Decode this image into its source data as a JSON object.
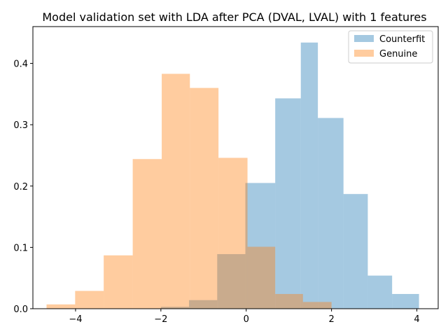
{
  "chart_data": {
    "type": "histogram",
    "title": "Model validation set with LDA after PCA (DVAL, LVAL) with 1 features",
    "xlabel": "",
    "ylabel": "",
    "xlim": [
      -5.0,
      4.5
    ],
    "ylim": [
      0.0,
      0.46
    ],
    "xticks": [
      -4,
      -2,
      0,
      2,
      4
    ],
    "yticks": [
      0.0,
      0.1,
      0.2,
      0.3,
      0.4
    ],
    "legend_position": "upper right",
    "series": [
      {
        "name": "Counterfit",
        "color": "#1f77b4",
        "alpha": 0.4,
        "bin_edges": [
          -2.0,
          -1.34,
          -0.68,
          -0.02,
          0.68,
          1.28,
          1.68,
          2.28,
          2.85,
          3.42,
          4.05
        ],
        "values": [
          0.003,
          0.014,
          0.089,
          0.205,
          0.343,
          0.434,
          0.311,
          0.187,
          0.054,
          0.024
        ]
      },
      {
        "name": "Genuine",
        "color": "#ff7f0e",
        "alpha": 0.4,
        "bin_edges": [
          -4.68,
          -4.01,
          -3.34,
          -2.66,
          -1.98,
          -1.32,
          -0.65,
          0.03,
          0.68,
          1.33,
          2.0
        ],
        "values": [
          0.007,
          0.029,
          0.087,
          0.244,
          0.383,
          0.36,
          0.246,
          0.101,
          0.024,
          0.011
        ]
      }
    ]
  }
}
